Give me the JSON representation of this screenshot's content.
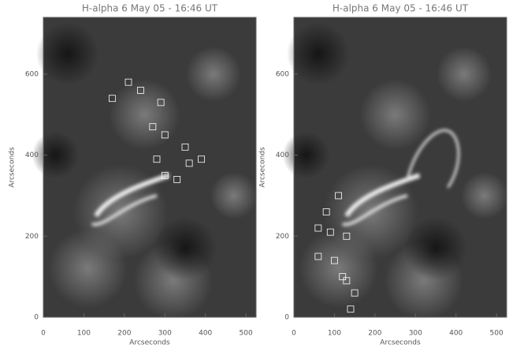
{
  "chart_data": [
    {
      "type": "image",
      "title": "H-alpha 6 May 05 - 16:46 UT",
      "xlabel": "Arcseconds",
      "ylabel": "Arcseconds",
      "xlim": [
        0,
        525
      ],
      "ylim": [
        0,
        740
      ],
      "xticks": [
        0,
        100,
        200,
        300,
        400,
        500
      ],
      "yticks": [
        0,
        200,
        400,
        600
      ]
    },
    {
      "type": "image",
      "title": "H-alpha 6 May 05 - 16:46 UT",
      "xlabel": "Arcseconds",
      "ylabel": "Arcseconds",
      "xlim": [
        0,
        525
      ],
      "ylim": [
        0,
        740
      ],
      "xticks": [
        0,
        100,
        200,
        300,
        400,
        500
      ],
      "yticks": [
        0,
        200,
        400,
        600
      ]
    }
  ]
}
